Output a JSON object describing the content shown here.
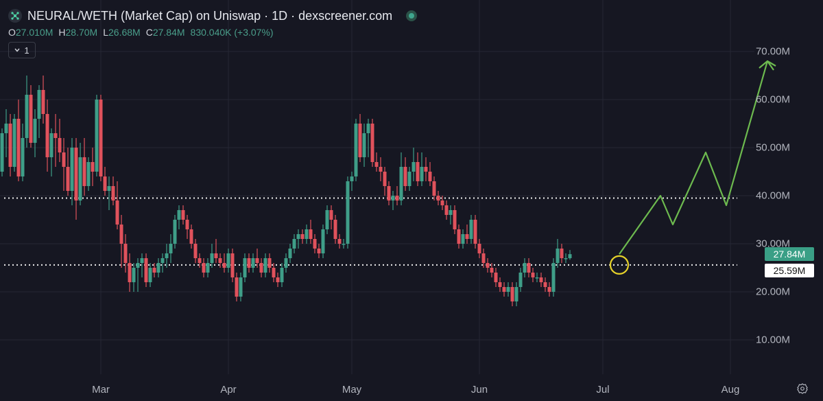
{
  "header": {
    "title": "NEURAL/WETH (Market Cap) on Uniswap · 1D · dexscreener.com",
    "ohlc": [
      {
        "label": "O",
        "value": "27.010M"
      },
      {
        "label": "H",
        "value": "28.70M"
      },
      {
        "label": "L",
        "value": "26.68M"
      },
      {
        "label": "C",
        "value": "27.84M"
      },
      {
        "label": "",
        "value": "830.040K (+3.07%)"
      }
    ],
    "toggle_count": "1"
  },
  "price_tags": {
    "current": "27.84M",
    "marker": "25.59M"
  },
  "colors": {
    "up": "#3f9e88",
    "down": "#e0525c",
    "background": "#161722",
    "projection": "#6dba4f",
    "highlight": "#e5d12a"
  },
  "chart_data": {
    "type": "candlestick",
    "y_unit": "M",
    "y_ticks": [
      "10.00M",
      "20.00M",
      "30.00M",
      "40.00M",
      "50.00M",
      "60.00M",
      "70.00M"
    ],
    "y_tick_values": [
      10,
      20,
      30,
      40,
      50,
      60,
      70
    ],
    "x_ticks": [
      "Mar",
      "Apr",
      "May",
      "Jun",
      "Jul",
      "Aug"
    ],
    "ylim": [
      0,
      76
    ],
    "grid": true,
    "start_date": "2024-02-01",
    "candles": [
      [
        60,
        65,
        52,
        64
      ],
      [
        64,
        67,
        52,
        55
      ],
      [
        55,
        60,
        45,
        48
      ],
      [
        48,
        57,
        43,
        50
      ],
      [
        50,
        53,
        44,
        45
      ],
      [
        45,
        54,
        44,
        53
      ],
      [
        53,
        58,
        48,
        55
      ],
      [
        55,
        57,
        44,
        46
      ],
      [
        46,
        57,
        45,
        56
      ],
      [
        56,
        60,
        43,
        44
      ],
      [
        44,
        55,
        43,
        52
      ],
      [
        52,
        65,
        50,
        61
      ],
      [
        61,
        63,
        50,
        51
      ],
      [
        51,
        58,
        48,
        56
      ],
      [
        56,
        63,
        52,
        62
      ],
      [
        62,
        65,
        55,
        57
      ],
      [
        57,
        60,
        45,
        48
      ],
      [
        48,
        54,
        44,
        53
      ],
      [
        53,
        57,
        46,
        52
      ],
      [
        52,
        56,
        47,
        49
      ],
      [
        49,
        52,
        41,
        46
      ],
      [
        46,
        50,
        40,
        41
      ],
      [
        41,
        52,
        38,
        50
      ],
      [
        50,
        52,
        35,
        39
      ],
      [
        39,
        51,
        38,
        48
      ],
      [
        48,
        52,
        40,
        42
      ],
      [
        42,
        48,
        41,
        47
      ],
      [
        47,
        50,
        42,
        45
      ],
      [
        45,
        61,
        44,
        60
      ],
      [
        60,
        61,
        43,
        44
      ],
      [
        44,
        46,
        40,
        41
      ],
      [
        41,
        44,
        37,
        42
      ],
      [
        42,
        44,
        38,
        39
      ],
      [
        39,
        43,
        33,
        34
      ],
      [
        34,
        36,
        25,
        30
      ],
      [
        30,
        32,
        24,
        26
      ],
      [
        26,
        28,
        20,
        22
      ],
      [
        22,
        26,
        20,
        25
      ],
      [
        25,
        27,
        20,
        26
      ],
      [
        26,
        28,
        23,
        27
      ],
      [
        27,
        28,
        21,
        22
      ],
      [
        22,
        26,
        21,
        25
      ],
      [
        25,
        26,
        23,
        24
      ],
      [
        24,
        27,
        23,
        26
      ],
      [
        26,
        28,
        24,
        27
      ],
      [
        27,
        30,
        25,
        28
      ],
      [
        28,
        32,
        26,
        30
      ],
      [
        30,
        36,
        29,
        35
      ],
      [
        35,
        38,
        33,
        37
      ],
      [
        37,
        38,
        34,
        35
      ],
      [
        35,
        36,
        31,
        33
      ],
      [
        33,
        34,
        29,
        30
      ],
      [
        30,
        31,
        26,
        27
      ],
      [
        27,
        28,
        25,
        26
      ],
      [
        26,
        27,
        23,
        24
      ],
      [
        24,
        27,
        23,
        26
      ],
      [
        26,
        30,
        25,
        28
      ],
      [
        28,
        31,
        26,
        27
      ],
      [
        27,
        28,
        25,
        26
      ],
      [
        26,
        28,
        24,
        25
      ],
      [
        25,
        29,
        24,
        28
      ],
      [
        28,
        29,
        22,
        23
      ],
      [
        23,
        24,
        18,
        19
      ],
      [
        19,
        24,
        18,
        23
      ],
      [
        23,
        28,
        22,
        27
      ],
      [
        27,
        28,
        24,
        25
      ],
      [
        25,
        28,
        24,
        27
      ],
      [
        27,
        29,
        25,
        26
      ],
      [
        26,
        27,
        23,
        24
      ],
      [
        24,
        28,
        23,
        27
      ],
      [
        27,
        28,
        24,
        25
      ],
      [
        25,
        26,
        22,
        23
      ],
      [
        23,
        24,
        21,
        22
      ],
      [
        22,
        26,
        21,
        25
      ],
      [
        25,
        28,
        24,
        27
      ],
      [
        27,
        30,
        26,
        29
      ],
      [
        29,
        32,
        28,
        31
      ],
      [
        31,
        33,
        29,
        32
      ],
      [
        32,
        33,
        30,
        31
      ],
      [
        31,
        34,
        30,
        33
      ],
      [
        33,
        35,
        30,
        31
      ],
      [
        31,
        32,
        28,
        29
      ],
      [
        29,
        30,
        27,
        28
      ],
      [
        28,
        34,
        27,
        33
      ],
      [
        33,
        38,
        32,
        37
      ],
      [
        37,
        38,
        33,
        35
      ],
      [
        35,
        36,
        30,
        31
      ],
      [
        31,
        32,
        29,
        30
      ],
      [
        30,
        31,
        29,
        30
      ],
      [
        30,
        44,
        29,
        43
      ],
      [
        43,
        45,
        41,
        44
      ],
      [
        44,
        56,
        43,
        55
      ],
      [
        55,
        57,
        47,
        48
      ],
      [
        48,
        55,
        46,
        53
      ],
      [
        53,
        56,
        48,
        55
      ],
      [
        55,
        56,
        46,
        47
      ],
      [
        47,
        49,
        45,
        46
      ],
      [
        46,
        48,
        43,
        45
      ],
      [
        45,
        46,
        40,
        42
      ],
      [
        42,
        43,
        38,
        39
      ],
      [
        39,
        41,
        37,
        40
      ],
      [
        40,
        42,
        38,
        39
      ],
      [
        39,
        49,
        38,
        46
      ],
      [
        46,
        48,
        41,
        42
      ],
      [
        42,
        46,
        41,
        45
      ],
      [
        45,
        50,
        43,
        47
      ],
      [
        47,
        49,
        42,
        43
      ],
      [
        43,
        49,
        42,
        46
      ],
      [
        46,
        48,
        43,
        45
      ],
      [
        45,
        47,
        42,
        43
      ],
      [
        43,
        44,
        39,
        40
      ],
      [
        40,
        41,
        38,
        39
      ],
      [
        39,
        40,
        37,
        38
      ],
      [
        38,
        39,
        35,
        36
      ],
      [
        36,
        38,
        34,
        37
      ],
      [
        37,
        38,
        32,
        33
      ],
      [
        33,
        34,
        29,
        30
      ],
      [
        30,
        33,
        29,
        32
      ],
      [
        32,
        34,
        30,
        31
      ],
      [
        31,
        36,
        30,
        35
      ],
      [
        35,
        36,
        29,
        30
      ],
      [
        30,
        31,
        27,
        28
      ],
      [
        28,
        29,
        25,
        26
      ],
      [
        26,
        27,
        24,
        25
      ],
      [
        25,
        26,
        23,
        24
      ],
      [
        24,
        25,
        21,
        22
      ],
      [
        22,
        23,
        20,
        21
      ],
      [
        21,
        22,
        19,
        20
      ],
      [
        20,
        22,
        19,
        21
      ],
      [
        21,
        22,
        17,
        18
      ],
      [
        18,
        22,
        17,
        21
      ],
      [
        21,
        25,
        20,
        24
      ],
      [
        24,
        27,
        23,
        26
      ],
      [
        26,
        27,
        23,
        24
      ],
      [
        24,
        25,
        22,
        23
      ],
      [
        23,
        24,
        22,
        23
      ],
      [
        23,
        24,
        21,
        22
      ],
      [
        22,
        23,
        20,
        21
      ],
      [
        21,
        22,
        19,
        20
      ],
      [
        20,
        27,
        19,
        26
      ],
      [
        26,
        31,
        25,
        29
      ],
      [
        29,
        30,
        26,
        27
      ],
      [
        27,
        28,
        26,
        27
      ],
      [
        27,
        28.7,
        26.68,
        27.84
      ]
    ],
    "projection_path": [
      [
        27.84,
        "2024-07-05"
      ],
      [
        40,
        "2024-07-15"
      ],
      [
        34,
        "2024-07-18"
      ],
      [
        49,
        "2024-07-26"
      ],
      [
        38,
        "2024-07-31"
      ],
      [
        68,
        "2024-08-10"
      ],
      [
        67,
        "2024-08-12"
      ]
    ],
    "horizontal_levels": [
      39.5,
      25.59
    ],
    "highlight_circle": {
      "value": 25.59,
      "date": "2024-07-05"
    }
  }
}
